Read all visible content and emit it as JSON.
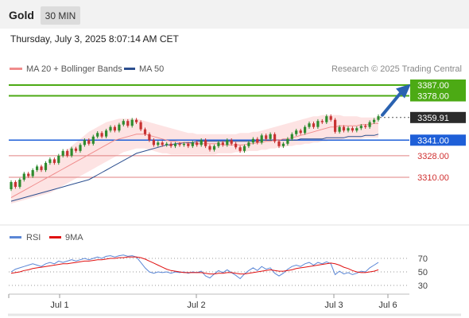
{
  "header": {
    "symbol": "Gold",
    "timeframe": "30 MIN"
  },
  "datetime": "Thursday, July 3, 2025 8:07:14 AM CET",
  "legend": {
    "ma20_label": "MA 20 + Bollinger Bands",
    "ma50_label": "MA 50",
    "credit": "Research © 2025 Trading Central",
    "colors": {
      "ma20": "#f08c8c",
      "ma50": "#2c4f8f"
    }
  },
  "rsi_legend": {
    "rsi_label": "RSI",
    "ma_label": "9MA",
    "colors": {
      "rsi": "#5b87d6",
      "ma": "#e01010"
    }
  },
  "levels": [
    {
      "value": "3387.00",
      "kind": "resistance",
      "color": "#4caa14"
    },
    {
      "value": "3378.00",
      "kind": "resistance",
      "color": "#4caa14"
    },
    {
      "value": "3359.91",
      "kind": "last_price",
      "color": "#2b2b2b"
    },
    {
      "value": "3341.00",
      "kind": "pivot",
      "color": "#1e5fd8"
    },
    {
      "value": "3328.00",
      "kind": "support",
      "color": "#e08080"
    },
    {
      "value": "3310.00",
      "kind": "support",
      "color": "#e08080"
    }
  ],
  "rsi_ticks": [
    "70",
    "50",
    "30"
  ],
  "x_ticks": [
    "Jul 1",
    "Jul 2",
    "Jul 3",
    "Jul 6"
  ],
  "colors": {
    "up_candle": "#2e8b2e",
    "down_candle": "#c83232",
    "band_fill": "#fde3e3",
    "arrow": "#2a62b0"
  },
  "chart_data": {
    "type": "candlestick",
    "price_range": [
      3290,
      3394
    ],
    "rsi_range": [
      20,
      80
    ],
    "key_levels": [
      3387.0,
      3378.0,
      3341.0,
      3328.0,
      3310.0
    ],
    "last_price": 3359.91,
    "x_tick_labels": [
      "Jul 1",
      "Jul 2",
      "Jul 3",
      "Jul 6"
    ],
    "candles": [
      [
        3300,
        3306
      ],
      [
        3306,
        3302
      ],
      [
        3302,
        3308
      ],
      [
        3308,
        3313
      ],
      [
        3313,
        3311
      ],
      [
        3311,
        3316
      ],
      [
        3316,
        3319
      ],
      [
        3319,
        3316
      ],
      [
        3316,
        3322
      ],
      [
        3322,
        3325
      ],
      [
        3325,
        3322
      ],
      [
        3322,
        3328
      ],
      [
        3328,
        3332
      ],
      [
        3332,
        3328
      ],
      [
        3328,
        3334
      ],
      [
        3334,
        3332
      ],
      [
        3332,
        3337
      ],
      [
        3337,
        3341
      ],
      [
        3341,
        3338
      ],
      [
        3338,
        3344
      ],
      [
        3344,
        3347
      ],
      [
        3347,
        3344
      ],
      [
        3344,
        3349
      ],
      [
        3349,
        3352
      ],
      [
        3352,
        3349
      ],
      [
        3349,
        3354
      ],
      [
        3354,
        3357
      ],
      [
        3357,
        3353
      ],
      [
        3353,
        3358
      ],
      [
        3358,
        3356
      ],
      [
        3356,
        3350
      ],
      [
        3350,
        3346
      ],
      [
        3346,
        3341
      ],
      [
        3341,
        3337
      ],
      [
        3337,
        3339
      ],
      [
        3339,
        3337
      ],
      [
        3337,
        3338
      ],
      [
        3338,
        3336
      ],
      [
        3336,
        3338
      ],
      [
        3338,
        3337
      ],
      [
        3337,
        3338
      ],
      [
        3338,
        3336
      ],
      [
        3336,
        3339
      ],
      [
        3339,
        3337
      ],
      [
        3337,
        3341
      ],
      [
        3341,
        3336
      ],
      [
        3336,
        3333
      ],
      [
        3333,
        3336
      ],
      [
        3336,
        3339
      ],
      [
        3339,
        3337
      ],
      [
        3337,
        3341
      ],
      [
        3341,
        3338
      ],
      [
        3338,
        3335
      ],
      [
        3335,
        3332
      ],
      [
        3332,
        3336
      ],
      [
        3336,
        3339
      ],
      [
        3339,
        3342
      ],
      [
        3342,
        3339
      ],
      [
        3339,
        3345
      ],
      [
        3345,
        3342
      ],
      [
        3342,
        3346
      ],
      [
        3346,
        3340
      ],
      [
        3340,
        3336
      ],
      [
        3336,
        3338
      ],
      [
        3338,
        3342
      ],
      [
        3342,
        3346
      ],
      [
        3346,
        3349
      ],
      [
        3349,
        3347
      ],
      [
        3347,
        3352
      ],
      [
        3352,
        3355
      ],
      [
        3355,
        3352
      ],
      [
        3352,
        3357
      ],
      [
        3357,
        3356
      ],
      [
        3356,
        3361
      ],
      [
        3361,
        3358
      ],
      [
        3358,
        3348
      ],
      [
        3348,
        3352
      ],
      [
        3352,
        3349
      ],
      [
        3349,
        3351
      ],
      [
        3351,
        3349
      ],
      [
        3349,
        3351
      ],
      [
        3351,
        3353
      ],
      [
        3353,
        3352
      ],
      [
        3352,
        3356
      ],
      [
        3356,
        3358
      ],
      [
        3358,
        3361
      ]
    ],
    "ma20": [
      3293,
      3295,
      3297,
      3299,
      3301,
      3303,
      3305,
      3307,
      3309,
      3311,
      3313,
      3315,
      3317,
      3319,
      3321,
      3323,
      3325,
      3327,
      3329,
      3331,
      3333,
      3335,
      3337,
      3339,
      3341,
      3342,
      3343,
      3344,
      3345,
      3346,
      3346,
      3346,
      3345,
      3344,
      3343,
      3342,
      3341,
      3340,
      3340,
      3339,
      3339,
      3338,
      3338,
      3338,
      3338,
      3338,
      3338,
      3338,
      3338,
      3337,
      3337,
      3337,
      3337,
      3337,
      3337,
      3338,
      3338,
      3339,
      3339,
      3340,
      3340,
      3341,
      3341,
      3342,
      3342,
      3343,
      3344,
      3345,
      3346,
      3347,
      3348,
      3349,
      3350,
      3351,
      3352,
      3352,
      3353,
      3353,
      3353,
      3353,
      3353,
      3354,
      3354,
      3354,
      3355,
      3355
    ],
    "bb_upper": [
      3304,
      3306,
      3308,
      3310,
      3312,
      3314,
      3316,
      3318,
      3320,
      3322,
      3324,
      3327,
      3330,
      3333,
      3336,
      3339,
      3342,
      3345,
      3348,
      3350,
      3352,
      3354,
      3356,
      3357,
      3358,
      3359,
      3359,
      3359,
      3359,
      3359,
      3358,
      3357,
      3356,
      3355,
      3354,
      3353,
      3352,
      3351,
      3350,
      3349,
      3348,
      3347,
      3347,
      3346,
      3346,
      3346,
      3346,
      3346,
      3346,
      3346,
      3346,
      3346,
      3346,
      3347,
      3347,
      3347,
      3348,
      3348,
      3349,
      3350,
      3351,
      3352,
      3353,
      3354,
      3355,
      3356,
      3357,
      3358,
      3359,
      3360,
      3361,
      3361,
      3362,
      3362,
      3362,
      3362,
      3362,
      3361,
      3361,
      3361,
      3361,
      3360,
      3360,
      3360,
      3360,
      3360
    ],
    "bb_lower": [
      3288,
      3289,
      3290,
      3291,
      3292,
      3293,
      3294,
      3295,
      3296,
      3297,
      3299,
      3301,
      3303,
      3305,
      3307,
      3309,
      3311,
      3313,
      3315,
      3317,
      3319,
      3321,
      3323,
      3325,
      3327,
      3329,
      3331,
      3332,
      3333,
      3334,
      3334,
      3334,
      3333,
      3332,
      3331,
      3330,
      3330,
      3329,
      3329,
      3329,
      3329,
      3329,
      3329,
      3329,
      3329,
      3329,
      3329,
      3329,
      3330,
      3330,
      3330,
      3330,
      3331,
      3331,
      3331,
      3332,
      3332,
      3332,
      3333,
      3333,
      3334,
      3334,
      3335,
      3335,
      3336,
      3336,
      3337,
      3337,
      3338,
      3338,
      3339,
      3339,
      3340,
      3340,
      3341,
      3341,
      3341,
      3342,
      3342,
      3342,
      3342,
      3342,
      3343,
      3343,
      3343,
      3343
    ],
    "ma50": [
      3290,
      3291,
      3292,
      3293,
      3294,
      3295,
      3296,
      3297,
      3298,
      3299,
      3300,
      3301,
      3302,
      3303,
      3304,
      3305,
      3306,
      3307,
      3308,
      3310,
      3312,
      3314,
      3316,
      3318,
      3320,
      3322,
      3324,
      3326,
      3328,
      3330,
      3331,
      3332,
      3333,
      3334,
      3335,
      3336,
      3337,
      3337,
      3338,
      3338,
      3339,
      3339,
      3339,
      3340,
      3340,
      3340,
      3340,
      3340,
      3340,
      3340,
      3340,
      3340,
      3340,
      3340,
      3340,
      3340,
      3340,
      3340,
      3341,
      3341,
      3341,
      3341,
      3341,
      3341,
      3341,
      3341,
      3341,
      3342,
      3342,
      3342,
      3342,
      3342,
      3342,
      3343,
      3343,
      3343,
      3343,
      3343,
      3344,
      3344,
      3344,
      3344,
      3345,
      3345,
      3345,
      3346
    ],
    "rsi": [
      50,
      54,
      56,
      58,
      60,
      62,
      60,
      58,
      62,
      64,
      62,
      66,
      64,
      66,
      68,
      66,
      68,
      70,
      68,
      70,
      72,
      70,
      73,
      74,
      72,
      74,
      75,
      73,
      74,
      72,
      64,
      56,
      50,
      48,
      50,
      49,
      50,
      48,
      50,
      49,
      50,
      48,
      50,
      49,
      51,
      44,
      41,
      47,
      52,
      49,
      53,
      49,
      45,
      40,
      47,
      52,
      56,
      52,
      58,
      54,
      56,
      48,
      44,
      48,
      54,
      58,
      60,
      58,
      62,
      64,
      60,
      64,
      62,
      65,
      62,
      46,
      51,
      47,
      49,
      46,
      48,
      51,
      50,
      56,
      60,
      64
    ],
    "rsi_ma": [
      48,
      49,
      50,
      52,
      53,
      55,
      56,
      57,
      58,
      59,
      60,
      61,
      62,
      62,
      63,
      64,
      65,
      66,
      66,
      67,
      68,
      68,
      69,
      70,
      70,
      71,
      71,
      72,
      72,
      72,
      71,
      69,
      66,
      63,
      60,
      57,
      54,
      52,
      51,
      50,
      49,
      49,
      49,
      49,
      49,
      48,
      47,
      47,
      48,
      48,
      49,
      49,
      48,
      47,
      47,
      48,
      49,
      50,
      51,
      52,
      53,
      52,
      51,
      51,
      52,
      53,
      55,
      56,
      57,
      58,
      59,
      60,
      61,
      62,
      63,
      62,
      60,
      57,
      55,
      52,
      50,
      49,
      49,
      50,
      51,
      53
    ]
  }
}
